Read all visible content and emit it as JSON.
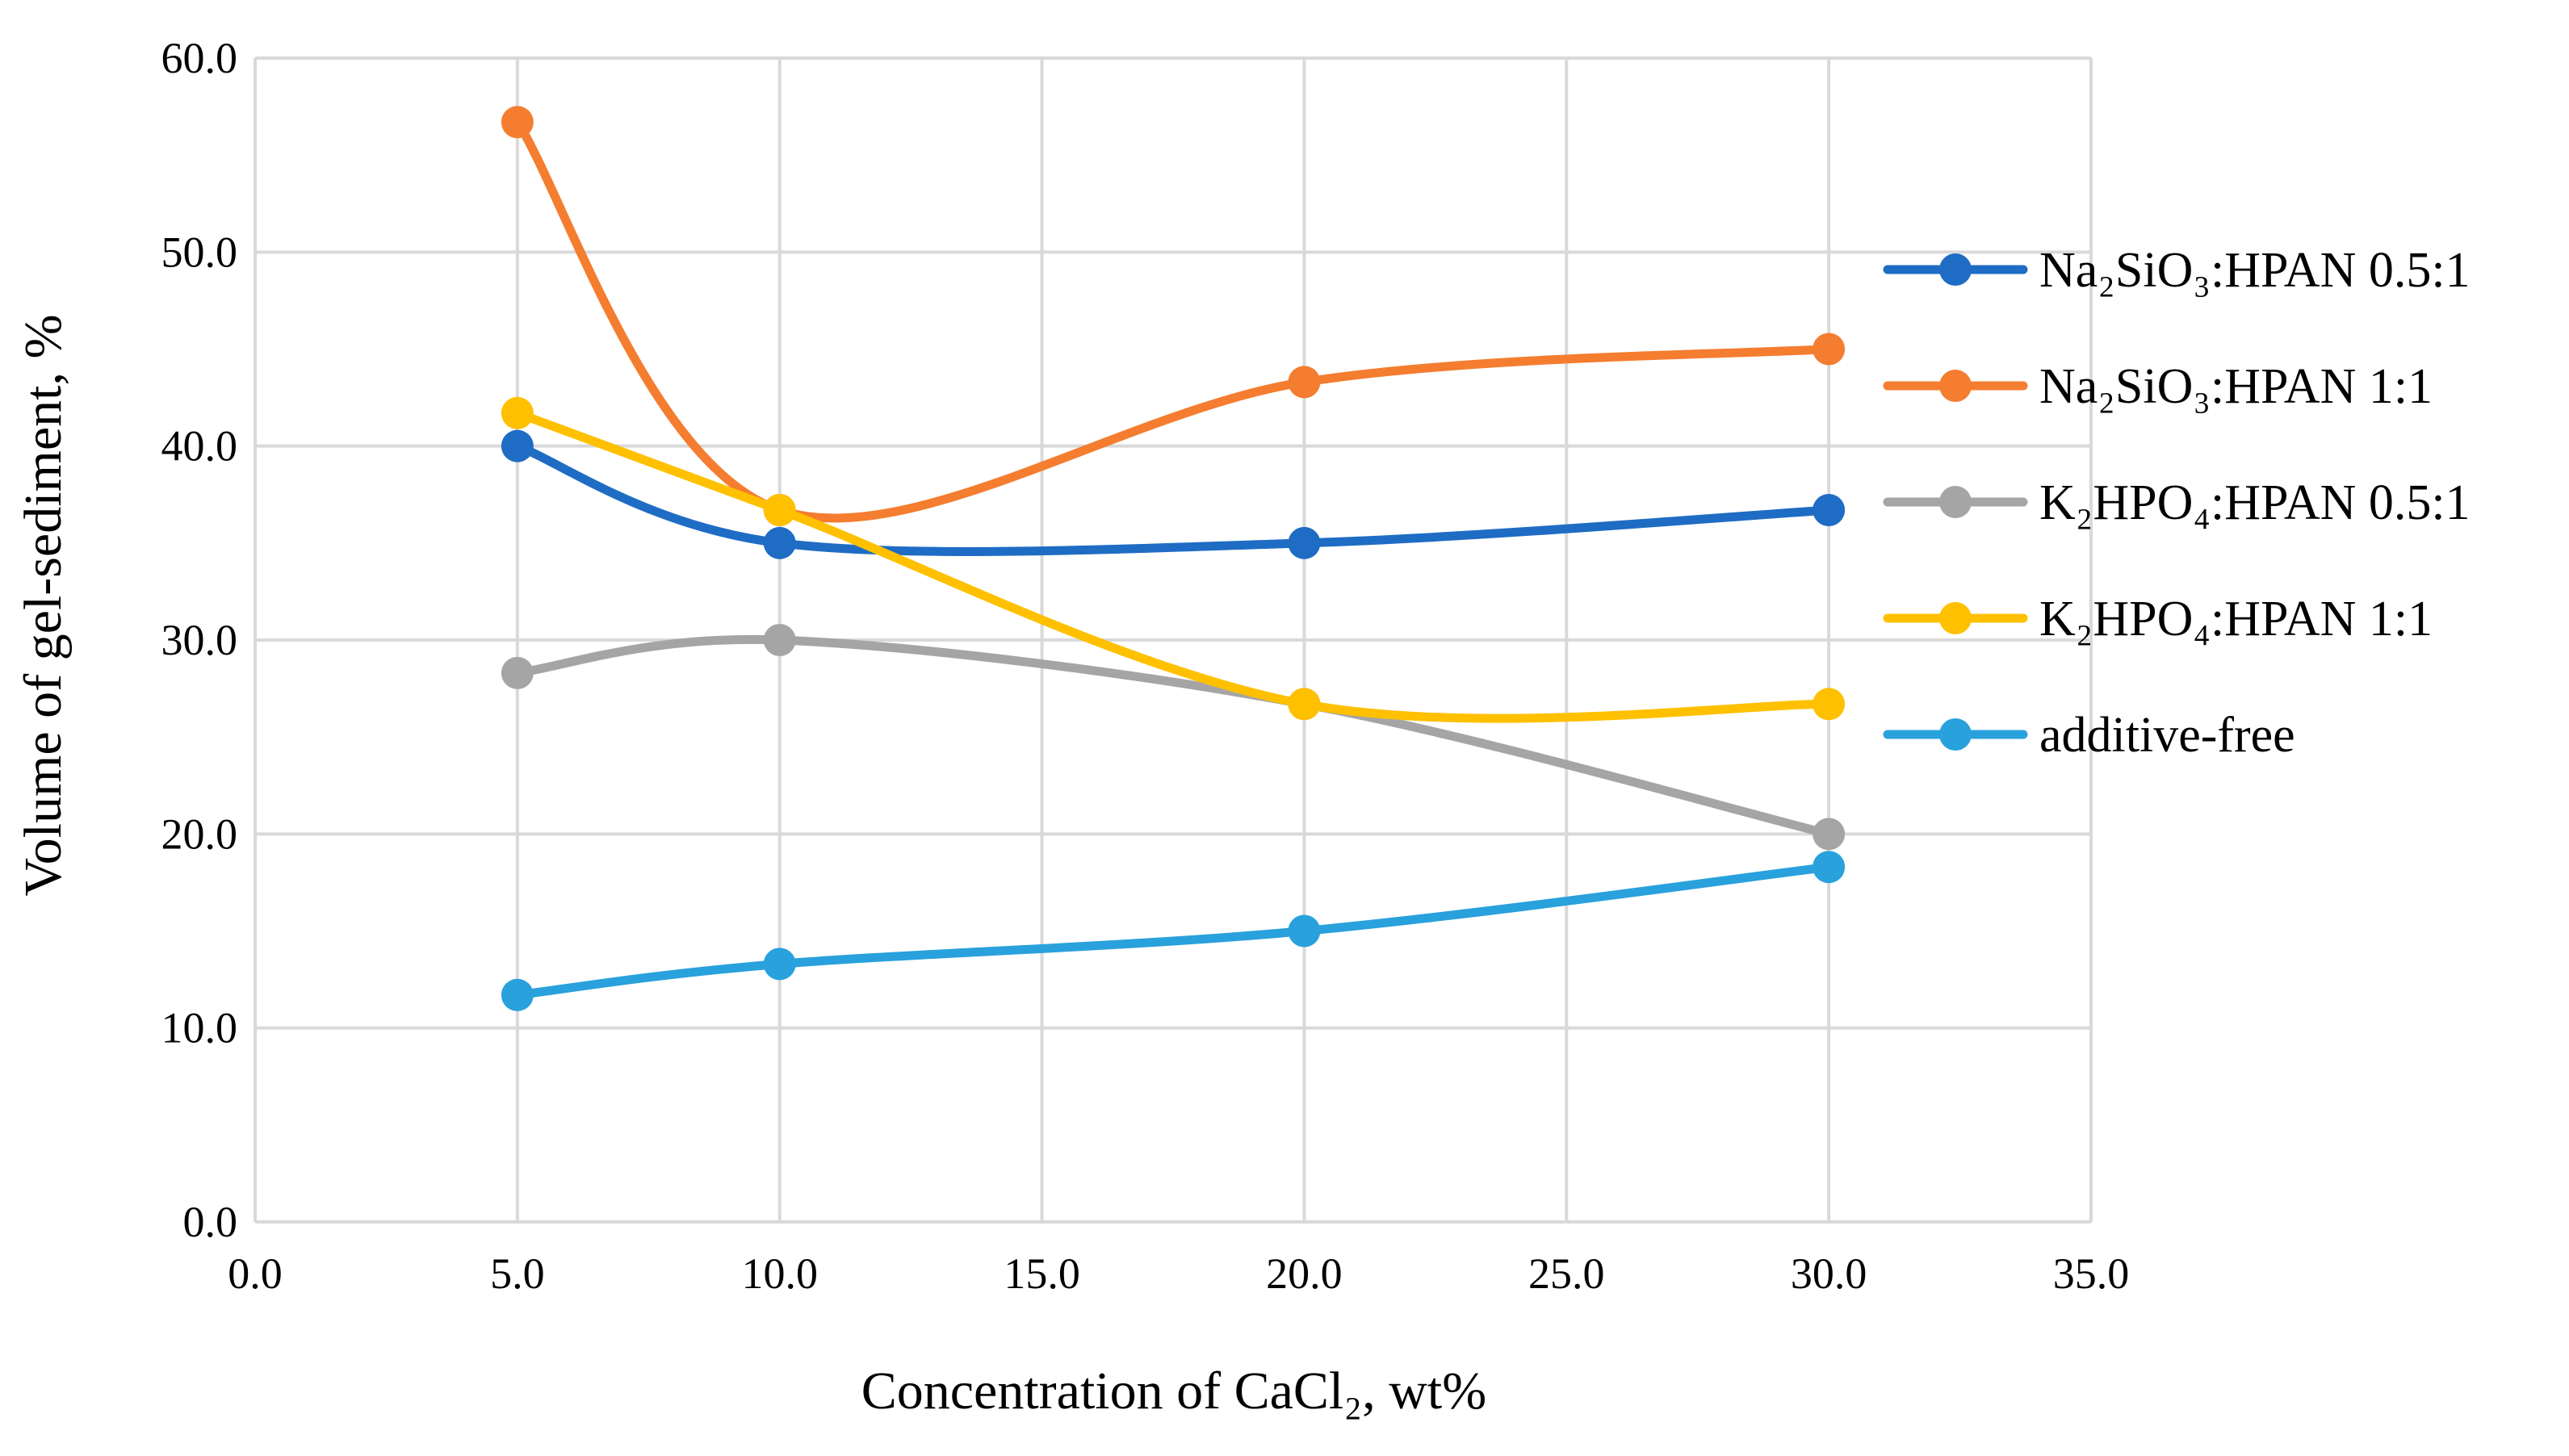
{
  "chart_data": {
    "type": "line",
    "smooth": true,
    "title": "",
    "xlabel": "Concentration of  CaCl₂, wt%",
    "ylabel": "Volume of gel-sediment, %",
    "xlim": [
      0,
      35
    ],
    "ylim": [
      0,
      60
    ],
    "x_ticks": [
      "0.0",
      "5.0",
      "10.0",
      "15.0",
      "20.0",
      "25.0",
      "30.0",
      "35.0"
    ],
    "y_ticks": [
      "0.0",
      "10.0",
      "20.0",
      "30.0",
      "40.0",
      "50.0",
      "60.0"
    ],
    "grid": true,
    "legend_position": "right",
    "x": [
      5,
      10,
      20,
      30
    ],
    "series": [
      {
        "name": "Na₂SiO₃:HPAN 0.5:1",
        "color": "#1f6cc4",
        "values": [
          40.0,
          35.0,
          35.0,
          36.7
        ]
      },
      {
        "name": "Na₂SiO₃:HPAN 1:1",
        "color": "#f47d30",
        "values": [
          56.7,
          36.7,
          43.3,
          45.0
        ]
      },
      {
        "name": "K₂HPO₄:HPAN 0.5:1",
        "color": "#a5a5a5",
        "values": [
          28.3,
          30.0,
          26.7,
          20.0
        ]
      },
      {
        "name": "K₂HPO₄:HPAN 1:1",
        "color": "#ffc000",
        "values": [
          41.7,
          36.7,
          26.7,
          26.7
        ]
      },
      {
        "name": "additive-free",
        "color": "#29a1dc",
        "values": [
          11.7,
          13.3,
          15.0,
          18.3
        ]
      }
    ]
  }
}
